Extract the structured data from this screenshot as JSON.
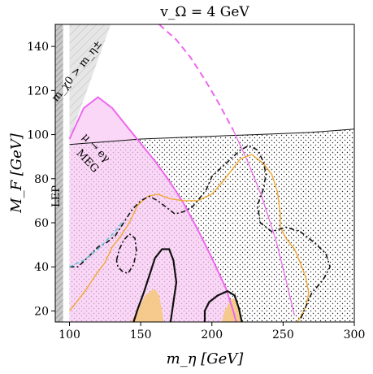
{
  "chart_data": {
    "type": "area",
    "title": "v_Ω = 4 GeV",
    "xlabel": "m_η [GeV]",
    "ylabel": "M_F [GeV]",
    "xlim": [
      90,
      300
    ],
    "ylim": [
      15,
      150
    ],
    "xticks": [
      100,
      150,
      200,
      250,
      300
    ],
    "yticks": [
      20,
      40,
      60,
      80,
      100,
      120,
      140
    ],
    "grid": false,
    "legend": "none",
    "annotations": {
      "lep": "LEP",
      "meg_line1": "μ → eγ",
      "meg_line2": "MEG",
      "mass_order": "m_χ0 > m_η±"
    },
    "colors": {
      "meg_region": "#f9c8f4",
      "meg_line": "#ee66ee",
      "lep_band": "#c8c8c8",
      "forbidden_region": "#e6e6e6",
      "orange_fill": "#f5c97f",
      "orange_line": "#f0a830",
      "cyan_line": "#57c8d8",
      "black_line": "#111111"
    },
    "regions": {
      "lep_band": {
        "x": [
          90,
          95.5
        ],
        "y": [
          15,
          150
        ]
      },
      "forbidden": [
        [
          100,
          98
        ],
        [
          129,
          150
        ],
        [
          100,
          150
        ]
      ],
      "dotted_excluded_boundary": [
        [
          100,
          95.5
        ],
        [
          110,
          96
        ],
        [
          130,
          97
        ],
        [
          150,
          98
        ],
        [
          170,
          98.5
        ],
        [
          190,
          99
        ],
        [
          210,
          99.5
        ],
        [
          230,
          100
        ],
        [
          250,
          100.5
        ],
        [
          270,
          101
        ],
        [
          290,
          102
        ],
        [
          300,
          102.5
        ]
      ],
      "meg_boundary": [
        [
          100,
          98
        ],
        [
          110,
          112
        ],
        [
          120,
          117
        ],
        [
          130,
          112
        ],
        [
          140,
          104
        ],
        [
          150,
          96
        ],
        [
          160,
          88
        ],
        [
          170,
          79
        ],
        [
          180,
          69
        ],
        [
          190,
          57
        ],
        [
          200,
          44
        ],
        [
          210,
          30
        ],
        [
          215,
          20
        ],
        [
          217,
          15
        ]
      ],
      "meg_dashed_extension": [
        [
          163,
          150
        ],
        [
          175,
          143
        ],
        [
          185,
          135
        ],
        [
          195,
          125
        ],
        [
          205,
          114
        ],
        [
          215,
          102
        ]
      ],
      "meg_thin_line": [
        [
          215,
          102
        ],
        [
          225,
          88
        ],
        [
          235,
          72
        ],
        [
          245,
          52
        ],
        [
          252,
          34
        ],
        [
          258,
          18
        ]
      ],
      "orange_fill_1": [
        [
          143,
          15
        ],
        [
          148,
          20
        ],
        [
          153,
          27
        ],
        [
          157,
          29
        ],
        [
          160,
          30
        ],
        [
          163,
          27
        ],
        [
          165,
          20
        ],
        [
          166,
          15
        ]
      ],
      "orange_fill_2": [
        [
          207,
          15
        ],
        [
          209,
          20
        ],
        [
          213,
          25
        ],
        [
          216,
          26
        ],
        [
          219,
          22
        ],
        [
          221,
          15
        ]
      ],
      "orange_contour": [
        [
          100,
          20
        ],
        [
          105,
          24
        ],
        [
          112,
          30
        ],
        [
          118,
          36
        ],
        [
          125,
          42
        ],
        [
          130,
          49
        ],
        [
          136,
          54
        ],
        [
          142,
          60
        ],
        [
          148,
          68
        ],
        [
          155,
          72
        ],
        [
          162,
          73
        ],
        [
          170,
          71
        ],
        [
          180,
          70
        ],
        [
          190,
          70
        ],
        [
          200,
          73
        ],
        [
          208,
          79
        ],
        [
          214,
          84
        ],
        [
          220,
          89
        ],
        [
          228,
          91
        ],
        [
          236,
          87
        ],
        [
          242,
          82
        ],
        [
          246,
          74
        ],
        [
          248,
          64
        ],
        [
          248,
          58
        ],
        [
          252,
          53
        ],
        [
          258,
          48
        ],
        [
          262,
          42
        ],
        [
          266,
          35
        ],
        [
          268,
          28
        ],
        [
          266,
          22
        ],
        [
          262,
          17
        ],
        [
          260,
          15
        ]
      ],
      "black_dashed_1": [
        [
          100,
          40
        ],
        [
          106,
          40
        ],
        [
          114,
          45
        ],
        [
          120,
          49
        ],
        [
          126,
          51
        ],
        [
          132,
          54
        ],
        [
          138,
          60
        ],
        [
          144,
          66
        ],
        [
          150,
          70
        ],
        [
          156,
          72
        ],
        [
          162,
          70
        ],
        [
          168,
          67
        ],
        [
          174,
          64
        ],
        [
          180,
          65
        ],
        [
          186,
          67
        ],
        [
          190,
          70
        ],
        [
          196,
          75
        ],
        [
          200,
          81
        ],
        [
          205,
          84
        ],
        [
          210,
          87
        ],
        [
          215,
          90
        ],
        [
          220,
          93
        ],
        [
          226,
          95
        ],
        [
          232,
          93
        ],
        [
          236,
          88
        ],
        [
          238,
          82
        ],
        [
          236,
          75
        ],
        [
          232,
          68
        ],
        [
          234,
          60
        ],
        [
          242,
          56
        ],
        [
          252,
          58
        ],
        [
          262,
          56
        ],
        [
          272,
          51
        ],
        [
          280,
          46
        ],
        [
          283,
          40
        ],
        [
          278,
          34
        ],
        [
          270,
          28
        ],
        [
          266,
          22
        ],
        [
          262,
          16
        ]
      ],
      "cyan_contour": [
        [
          100,
          40
        ],
        [
          110,
          43
        ],
        [
          120,
          48
        ],
        [
          126,
          52
        ],
        [
          132,
          56
        ],
        [
          138,
          61
        ]
      ],
      "black_dashed_loop": [
        [
          133,
          43
        ],
        [
          135,
          48
        ],
        [
          138,
          52
        ],
        [
          142,
          55
        ],
        [
          146,
          53
        ],
        [
          147,
          47
        ],
        [
          145,
          41
        ],
        [
          141,
          37
        ],
        [
          137,
          38
        ],
        [
          134,
          40
        ],
        [
          133,
          43
        ]
      ],
      "black_solid_1": [
        [
          145,
          15
        ],
        [
          148,
          21
        ],
        [
          152,
          28
        ],
        [
          156,
          36
        ],
        [
          160,
          44
        ],
        [
          165,
          48
        ],
        [
          170,
          48
        ],
        [
          173,
          43
        ],
        [
          175,
          33
        ],
        [
          173,
          24
        ],
        [
          171,
          15
        ]
      ],
      "black_solid_2": [
        [
          195,
          15
        ],
        [
          195,
          20
        ],
        [
          198,
          24
        ],
        [
          204,
          27
        ],
        [
          211,
          29
        ],
        [
          216,
          27
        ],
        [
          219,
          21
        ],
        [
          221,
          15
        ]
      ]
    }
  }
}
